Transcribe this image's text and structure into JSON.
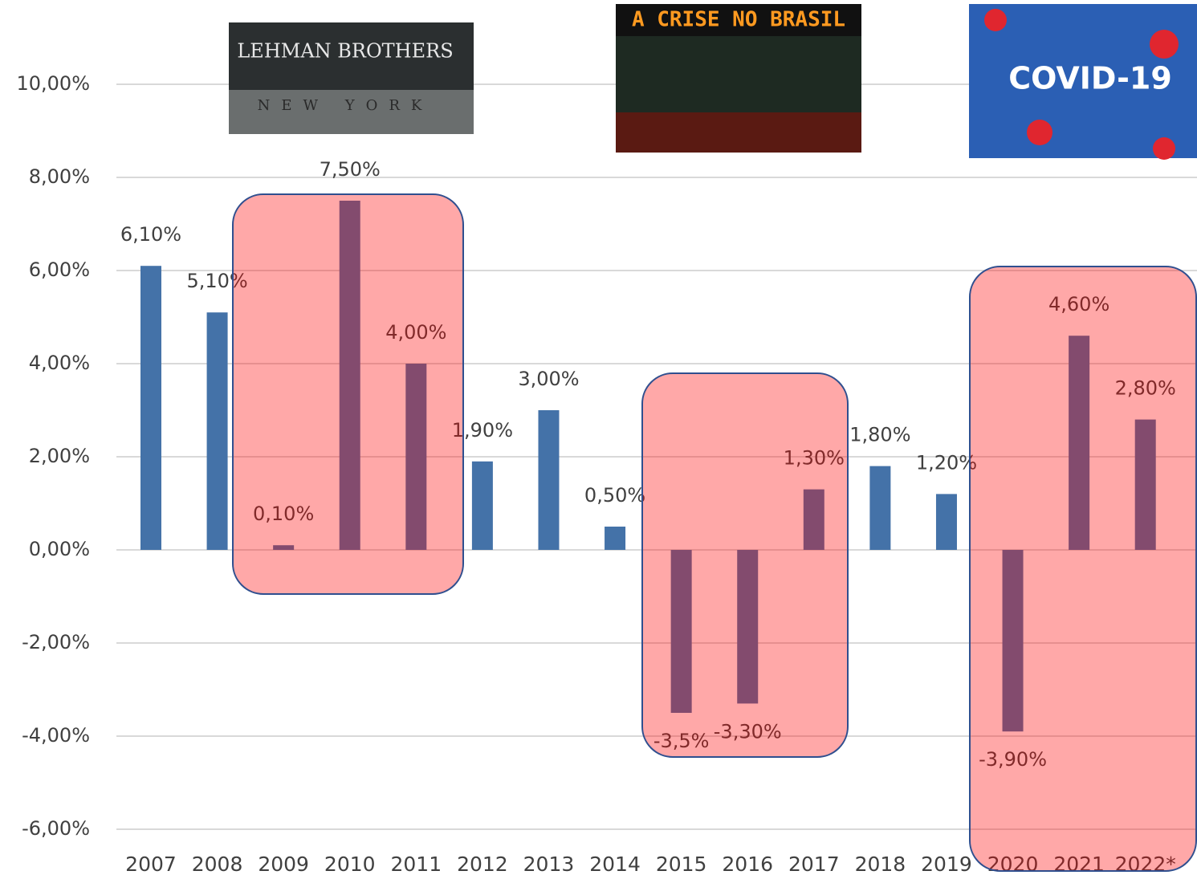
{
  "chart_data": {
    "type": "bar",
    "categories": [
      "2007",
      "2008",
      "2009",
      "2010",
      "2011",
      "2012",
      "2013",
      "2014",
      "2015",
      "2016",
      "2017",
      "2018",
      "2019",
      "2020",
      "2021",
      "2022*"
    ],
    "values": [
      6.1,
      5.1,
      0.1,
      7.5,
      4.0,
      1.9,
      3.0,
      0.5,
      -3.5,
      -3.3,
      1.3,
      1.8,
      1.2,
      -3.9,
      4.6,
      2.8
    ],
    "value_labels": [
      "6,10%",
      "5,10%",
      "0,10%",
      "7,50%",
      "4,00%",
      "1,90%",
      "3,00%",
      "0,50%",
      "-3,5%",
      "-3,30%",
      "1,30%",
      "1,80%",
      "1,20%",
      "-3,90%",
      "4,60%",
      "2,80%"
    ],
    "color": "#4472a8",
    "ylim": [
      -6,
      10
    ],
    "yticks": [
      {
        "value": -6,
        "label": "-6,00%"
      },
      {
        "value": -4,
        "label": "-4,00%"
      },
      {
        "value": -2,
        "label": "-2,00%"
      },
      {
        "value": 0,
        "label": "0,00%"
      },
      {
        "value": 2,
        "label": "2,00%"
      },
      {
        "value": 4,
        "label": "4,00%"
      },
      {
        "value": 6,
        "label": "6,00%"
      },
      {
        "value": 8,
        "label": "8,00%"
      },
      {
        "value": 10,
        "label": "10,00%"
      }
    ],
    "grid": true,
    "annotations": [
      "LEHMAN BROTHERS",
      "NEW YORK",
      "A CRISE NO BRASIL",
      "COVID-19"
    ]
  }
}
